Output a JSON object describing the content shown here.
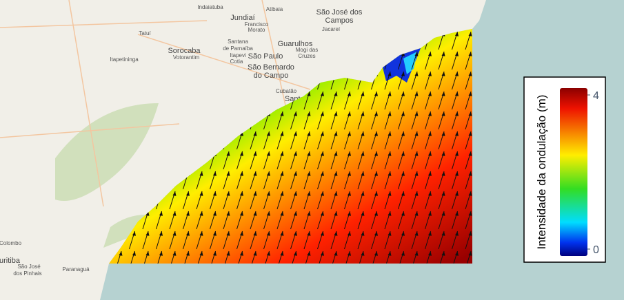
{
  "map": {
    "places": [
      "Indaiatuba",
      "Jundiaí",
      "Atibaia",
      "São José dos",
      "Campos",
      "Francisco",
      "Morato",
      "Jacareí",
      "Tatuí",
      "Sorocaba",
      "Votorantim",
      "Santana",
      "de Parnaíba",
      "Guarulhos",
      "São Paulo",
      "Mogi das",
      "Cruzes",
      "Itapetininga",
      "Itapevi",
      "Cotia",
      "São Bernardo",
      "do Campo",
      "Cubatão",
      "Santos",
      "Colombo",
      "Curitiba",
      "São José",
      "dos Pinhais",
      "Paranaguá"
    ],
    "legend": {
      "title": "Intensidade da ondulação (m)",
      "range": [
        0,
        4
      ],
      "ticks": [
        0,
        4
      ]
    }
  }
}
